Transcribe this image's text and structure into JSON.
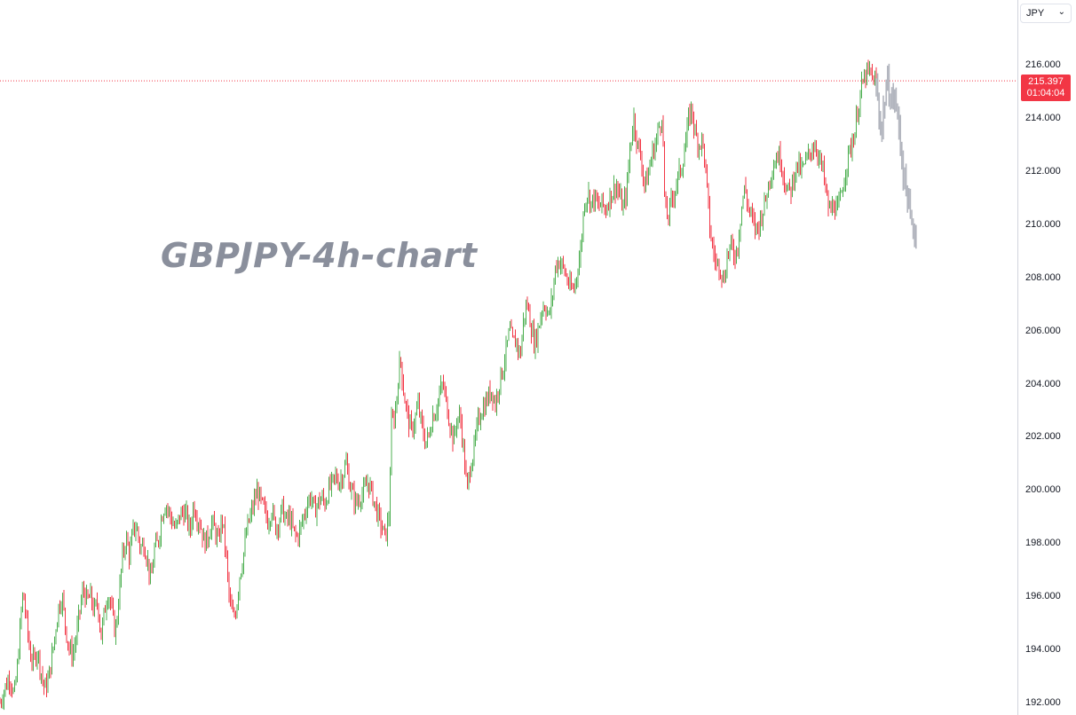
{
  "currency_select": {
    "value": "JPY"
  },
  "watermark": "GBPJPY-4h-chart",
  "last_price": {
    "value": "215.397",
    "countdown": "01:04:04",
    "color": "#f23645"
  },
  "colors": {
    "up": "#4caf50",
    "down": "#f23645",
    "projection": "#b2b5be",
    "price_line": "#f23645"
  },
  "chart_data": {
    "type": "candlestick",
    "symbol": "GBPJPY",
    "timeframe": "4h",
    "title": "",
    "ylim": [
      192,
      216.5
    ],
    "y_ticks": [
      "192.000",
      "194.000",
      "196.000",
      "198.000",
      "200.000",
      "202.000",
      "204.000",
      "206.000",
      "208.000",
      "210.000",
      "212.000",
      "214.000",
      "216.000"
    ],
    "last_price": 215.397,
    "price_path": [
      [
        0,
        192.0
      ],
      [
        6,
        192.6
      ],
      [
        11,
        193.0
      ],
      [
        16,
        192.2
      ],
      [
        20,
        193.5
      ],
      [
        23,
        195.0
      ],
      [
        26,
        196.2
      ],
      [
        30,
        195.0
      ],
      [
        34,
        193.8
      ],
      [
        38,
        193.5
      ],
      [
        42,
        194.0
      ],
      [
        46,
        193.2
      ],
      [
        50,
        192.5
      ],
      [
        54,
        192.8
      ],
      [
        58,
        193.6
      ],
      [
        62,
        194.6
      ],
      [
        66,
        195.6
      ],
      [
        70,
        196.0
      ],
      [
        74,
        194.8
      ],
      [
        78,
        194.0
      ],
      [
        82,
        193.8
      ],
      [
        86,
        194.5
      ],
      [
        90,
        195.5
      ],
      [
        94,
        196.3
      ],
      [
        98,
        195.8
      ],
      [
        102,
        196.0
      ],
      [
        106,
        195.4
      ],
      [
        110,
        195.8
      ],
      [
        114,
        194.5
      ],
      [
        118,
        195.5
      ],
      [
        122,
        196.2
      ],
      [
        126,
        195.4
      ],
      [
        130,
        194.6
      ],
      [
        134,
        196.0
      ],
      [
        138,
        197.5
      ],
      [
        142,
        198.2
      ],
      [
        146,
        197.5
      ],
      [
        150,
        198.5
      ],
      [
        154,
        198.6
      ],
      [
        158,
        197.8
      ],
      [
        162,
        198.0
      ],
      [
        166,
        197.4
      ],
      [
        170,
        196.5
      ],
      [
        174,
        197.8
      ],
      [
        178,
        198.0
      ],
      [
        182,
        199.0
      ],
      [
        186,
        199.5
      ],
      [
        190,
        199.2
      ],
      [
        194,
        198.8
      ],
      [
        198,
        198.5
      ],
      [
        202,
        199.0
      ],
      [
        206,
        199.2
      ],
      [
        210,
        199.0
      ],
      [
        214,
        198.4
      ],
      [
        218,
        199.5
      ],
      [
        222,
        199.0
      ],
      [
        226,
        198.7
      ],
      [
        230,
        198.0
      ],
      [
        234,
        198.2
      ],
      [
        238,
        198.8
      ],
      [
        242,
        198.5
      ],
      [
        246,
        198.0
      ],
      [
        250,
        199.0
      ],
      [
        254,
        197.8
      ],
      [
        258,
        196.0
      ],
      [
        262,
        195.2
      ],
      [
        266,
        195.5
      ],
      [
        270,
        196.8
      ],
      [
        274,
        197.5
      ],
      [
        278,
        198.5
      ],
      [
        282,
        199.0
      ],
      [
        286,
        199.5
      ],
      [
        290,
        200.0
      ],
      [
        294,
        199.5
      ],
      [
        298,
        199.2
      ],
      [
        302,
        198.8
      ],
      [
        306,
        199.3
      ],
      [
        310,
        198.6
      ],
      [
        314,
        198.8
      ],
      [
        318,
        199.3
      ],
      [
        322,
        198.8
      ],
      [
        326,
        199.0
      ],
      [
        330,
        198.5
      ],
      [
        334,
        198.2
      ],
      [
        338,
        198.5
      ],
      [
        342,
        199.0
      ],
      [
        346,
        199.5
      ],
      [
        350,
        199.8
      ],
      [
        354,
        199.2
      ],
      [
        358,
        199.5
      ],
      [
        362,
        199.7
      ],
      [
        366,
        199.5
      ],
      [
        370,
        200.0
      ],
      [
        374,
        200.2
      ],
      [
        378,
        200.5
      ],
      [
        382,
        200.3
      ],
      [
        386,
        200.6
      ],
      [
        390,
        201.0
      ],
      [
        394,
        200.2
      ],
      [
        398,
        199.7
      ],
      [
        402,
        199.5
      ],
      [
        406,
        199.8
      ],
      [
        410,
        199.9
      ],
      [
        414,
        200.3
      ],
      [
        418,
        200.0
      ],
      [
        422,
        199.5
      ],
      [
        426,
        199.0
      ],
      [
        430,
        198.6
      ],
      [
        434,
        198.2
      ],
      [
        438,
        199.0
      ],
      [
        441,
        202.5
      ],
      [
        445,
        202.8
      ],
      [
        448,
        204.0
      ],
      [
        451,
        205.0
      ],
      [
        455,
        203.6
      ],
      [
        459,
        202.8
      ],
      [
        463,
        202.2
      ],
      [
        467,
        202.6
      ],
      [
        471,
        203.2
      ],
      [
        475,
        202.4
      ],
      [
        479,
        201.8
      ],
      [
        483,
        202.0
      ],
      [
        487,
        202.8
      ],
      [
        491,
        203.0
      ],
      [
        495,
        203.6
      ],
      [
        499,
        204.0
      ],
      [
        503,
        203.2
      ],
      [
        507,
        202.5
      ],
      [
        511,
        201.8
      ],
      [
        515,
        202.8
      ],
      [
        519,
        202.6
      ],
      [
        523,
        201.2
      ],
      [
        526,
        199.9
      ],
      [
        530,
        201.0
      ],
      [
        534,
        201.5
      ],
      [
        538,
        202.5
      ],
      [
        542,
        203.0
      ],
      [
        546,
        203.2
      ],
      [
        550,
        203.5
      ],
      [
        554,
        203.8
      ],
      [
        558,
        203.2
      ],
      [
        562,
        204.0
      ],
      [
        566,
        204.5
      ],
      [
        570,
        205.2
      ],
      [
        574,
        206.0
      ],
      [
        578,
        205.5
      ],
      [
        582,
        205.6
      ],
      [
        586,
        205.0
      ],
      [
        590,
        206.5
      ],
      [
        594,
        207.0
      ],
      [
        598,
        206.2
      ],
      [
        602,
        205.5
      ],
      [
        606,
        206.0
      ],
      [
        610,
        206.8
      ],
      [
        614,
        207.0
      ],
      [
        618,
        206.5
      ],
      [
        622,
        207.2
      ],
      [
        626,
        208.5
      ],
      [
        630,
        208.6
      ],
      [
        634,
        208.4
      ],
      [
        638,
        208.0
      ],
      [
        642,
        207.6
      ],
      [
        646,
        207.5
      ],
      [
        650,
        208.2
      ],
      [
        654,
        209.0
      ],
      [
        658,
        210.8
      ],
      [
        662,
        211.2
      ],
      [
        666,
        210.8
      ],
      [
        670,
        211.0
      ],
      [
        674,
        210.6
      ],
      [
        678,
        210.8
      ],
      [
        682,
        210.5
      ],
      [
        686,
        211.0
      ],
      [
        690,
        211.2
      ],
      [
        694,
        211.5
      ],
      [
        698,
        211.0
      ],
      [
        702,
        210.6
      ],
      [
        706,
        211.3
      ],
      [
        710,
        213.0
      ],
      [
        714,
        214.0
      ],
      [
        718,
        213.0
      ],
      [
        722,
        212.5
      ],
      [
        726,
        211.5
      ],
      [
        730,
        211.8
      ],
      [
        734,
        212.6
      ],
      [
        738,
        213.0
      ],
      [
        742,
        213.6
      ],
      [
        746,
        214.2
      ],
      [
        749,
        210.5
      ],
      [
        752,
        210.2
      ],
      [
        756,
        210.8
      ],
      [
        760,
        211.3
      ],
      [
        764,
        211.8
      ],
      [
        768,
        212.2
      ],
      [
        772,
        213.0
      ],
      [
        776,
        214.0
      ],
      [
        779,
        214.4
      ],
      [
        783,
        213.4
      ],
      [
        787,
        213.0
      ],
      [
        791,
        213.2
      ],
      [
        795,
        212.0
      ],
      [
        799,
        210.0
      ],
      [
        803,
        209.0
      ],
      [
        807,
        208.5
      ],
      [
        811,
        208.5
      ],
      [
        815,
        207.8
      ],
      [
        819,
        208.8
      ],
      [
        823,
        209.2
      ],
      [
        827,
        208.8
      ],
      [
        831,
        209.2
      ],
      [
        835,
        210.6
      ],
      [
        839,
        211.4
      ],
      [
        843,
        210.6
      ],
      [
        847,
        210.2
      ],
      [
        851,
        209.8
      ],
      [
        855,
        210.0
      ],
      [
        859,
        210.5
      ],
      [
        863,
        211.0
      ],
      [
        867,
        211.8
      ],
      [
        871,
        212.2
      ],
      [
        875,
        212.6
      ],
      [
        879,
        212.5
      ],
      [
        883,
        211.8
      ],
      [
        887,
        211.2
      ],
      [
        891,
        211.3
      ],
      [
        895,
        212.0
      ],
      [
        899,
        212.2
      ],
      [
        903,
        212.0
      ],
      [
        907,
        212.3
      ],
      [
        911,
        212.6
      ],
      [
        915,
        212.9
      ],
      [
        919,
        213.0
      ],
      [
        923,
        212.4
      ],
      [
        927,
        212.0
      ],
      [
        931,
        211.0
      ],
      [
        935,
        210.4
      ],
      [
        939,
        210.8
      ],
      [
        943,
        210.4
      ],
      [
        947,
        211.0
      ],
      [
        951,
        211.8
      ],
      [
        955,
        212.5
      ],
      [
        959,
        213.0
      ],
      [
        963,
        213.5
      ],
      [
        967,
        214.5
      ],
      [
        971,
        215.2
      ],
      [
        975,
        215.6
      ],
      [
        979,
        215.7
      ],
      [
        983,
        215.5
      ],
      [
        987,
        215.4
      ]
    ],
    "projection_path": [
      [
        987,
        215.2
      ],
      [
        990,
        214.2
      ],
      [
        993,
        213.5
      ],
      [
        996,
        214.6
      ],
      [
        999,
        215.3
      ],
      [
        1002,
        215.0
      ],
      [
        1005,
        214.6
      ],
      [
        1008,
        214.8
      ],
      [
        1011,
        214.0
      ],
      [
        1014,
        213.2
      ],
      [
        1017,
        212.0
      ],
      [
        1020,
        211.5
      ],
      [
        1023,
        210.8
      ],
      [
        1026,
        210.0
      ],
      [
        1029,
        209.8
      ],
      [
        1032,
        209.6
      ]
    ]
  }
}
